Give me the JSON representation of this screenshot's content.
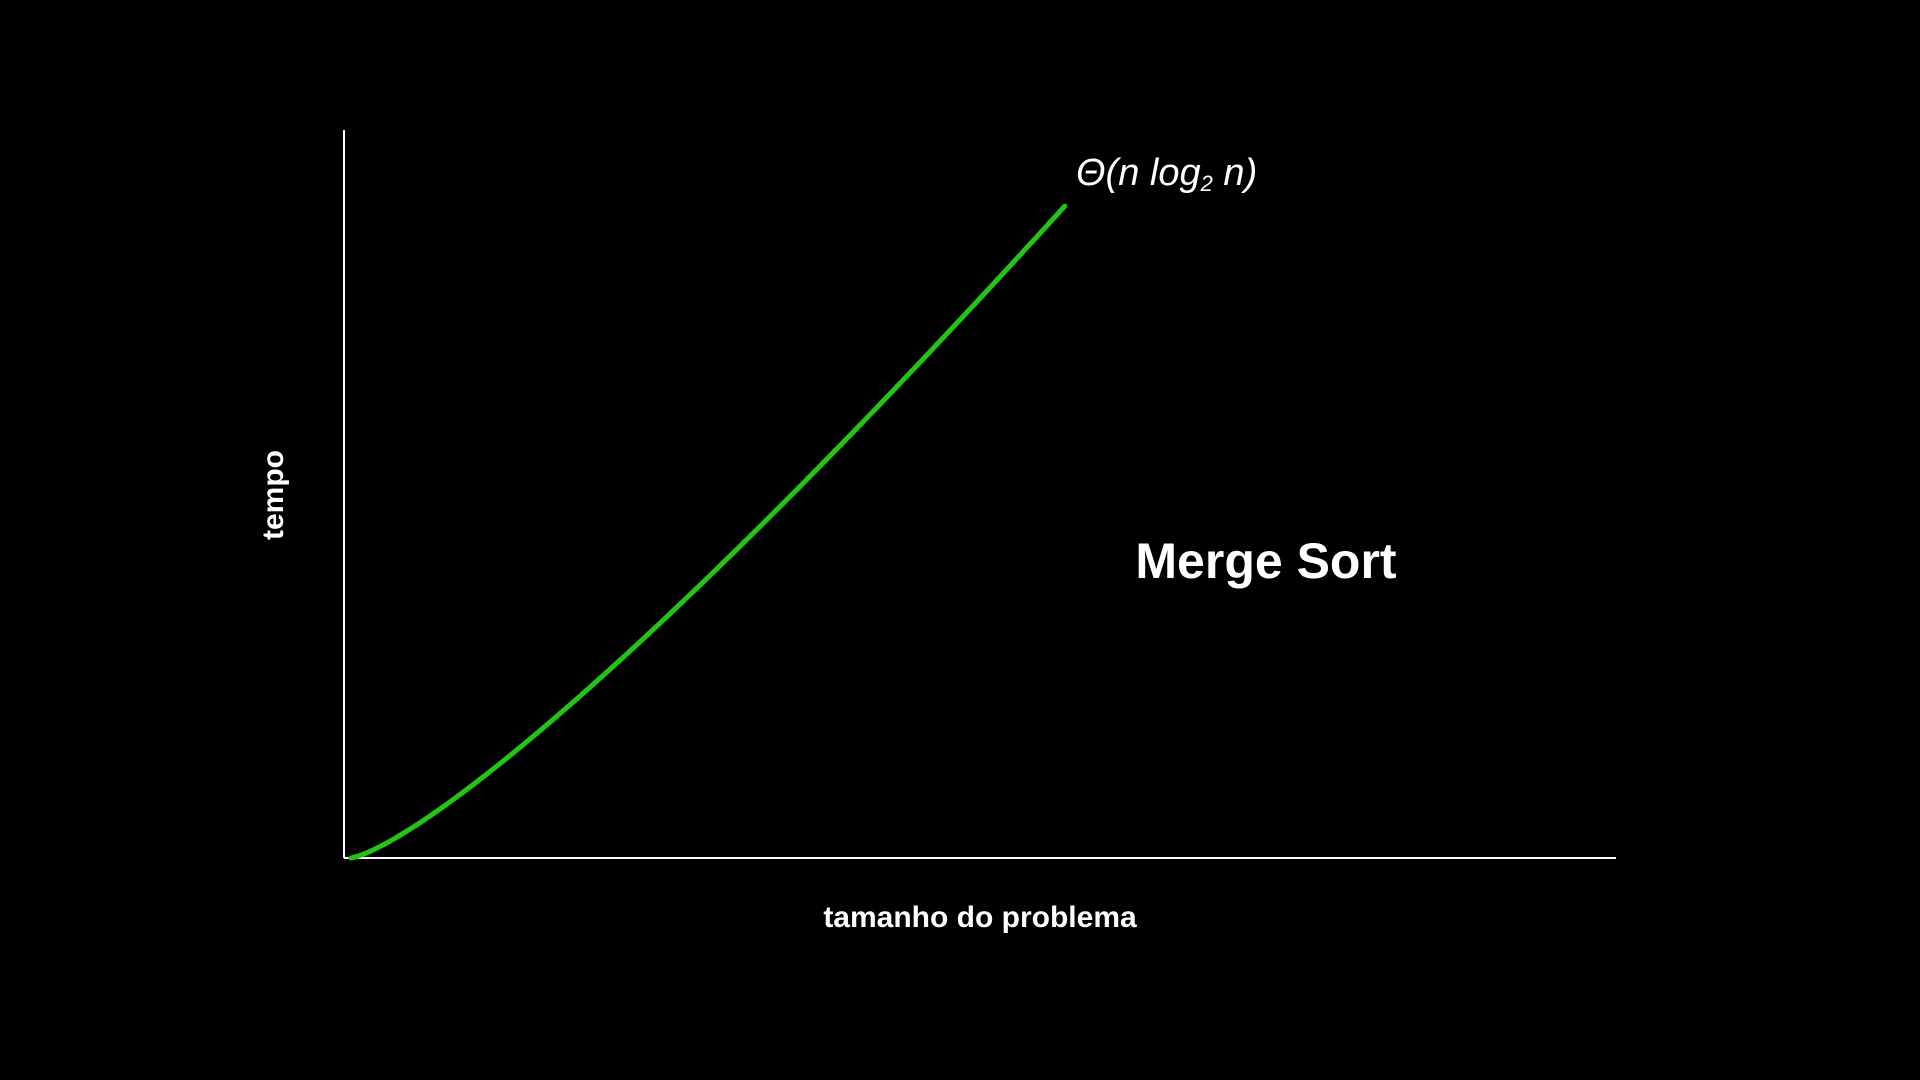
{
  "chart_data": {
    "type": "line",
    "title": "Merge Sort",
    "xlabel": "tamanho do problema",
    "ylabel": "tempo",
    "grid": false,
    "series": [
      {
        "name": "Θ(n log₂ n)",
        "color": "#22c514",
        "function": "n*log2(n)",
        "x": [
          1,
          6,
          12,
          18,
          24,
          30,
          36,
          42,
          48,
          54,
          60,
          66,
          72,
          78,
          84,
          90,
          96,
          102
        ],
        "y": [
          0,
          15.5,
          43.0,
          75.1,
          110.0,
          147.2,
          186.1,
          226.5,
          268.1,
          310.7,
          354.4,
          398.9,
          444.2,
          490.3,
          537.0,
          584.3,
          632.1,
          680.6
        ]
      }
    ],
    "xlim": [
      0,
      180
    ],
    "ylim": [
      0,
      760
    ],
    "series_label": {
      "prefix": "Θ(n log",
      "subscript": "2",
      "suffix": " n)"
    }
  },
  "colors": {
    "background": "#000000",
    "axis": "#ffffff",
    "text": "#ffffff",
    "curve": "#22c514"
  }
}
